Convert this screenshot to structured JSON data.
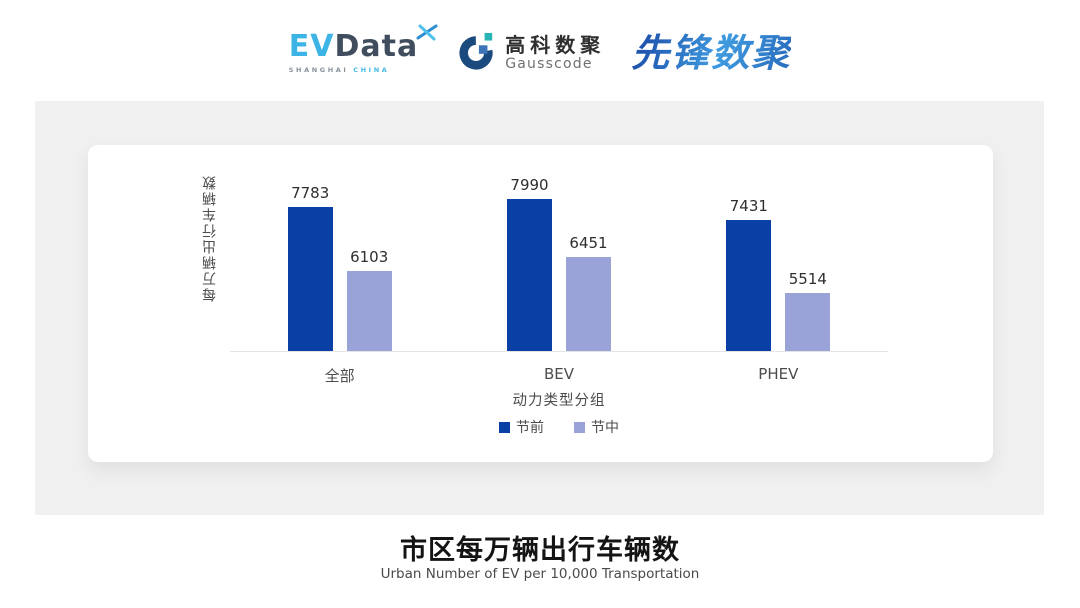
{
  "header": {
    "evdata": {
      "ev": "EV",
      "data": "Data",
      "shanghai": "SHANGHAI",
      "china": "CHINA",
      "ev_color": "#3cb4e5",
      "data_color": "#3f4d5e"
    },
    "gausscode": {
      "cn": "高科数聚",
      "en": "Gausscode",
      "mark_ring_color": "#1b4b7e",
      "mark_teal_color": "#2ab3b5",
      "mark_blue_color": "#3e74b8"
    },
    "pioneer": {
      "text": "先锋数聚",
      "color_start": "#1f55ae",
      "color_end": "#3f9be0"
    }
  },
  "chart_data": {
    "type": "bar",
    "categories": [
      "全部",
      "BEV",
      "PHEV"
    ],
    "series": [
      {
        "name": "节前",
        "color": "#0a3fa5",
        "values": [
          7783,
          7990,
          7431
        ]
      },
      {
        "name": "节中",
        "color": "#99a3d8",
        "values": [
          6103,
          6451,
          5514
        ]
      }
    ],
    "title": "",
    "xlabel": "动力类型分组",
    "ylabel": "每万辆出行车辆数",
    "ylim": [
      4000,
      8400
    ],
    "grid": false,
    "legend_position": "bottom",
    "bar_labels": true,
    "axis_line_color": "#e4e4e6"
  },
  "footer": {
    "title": "市区每万辆出行车辆数",
    "subtitle": "Urban Number of EV per 10,000 Transportation"
  }
}
